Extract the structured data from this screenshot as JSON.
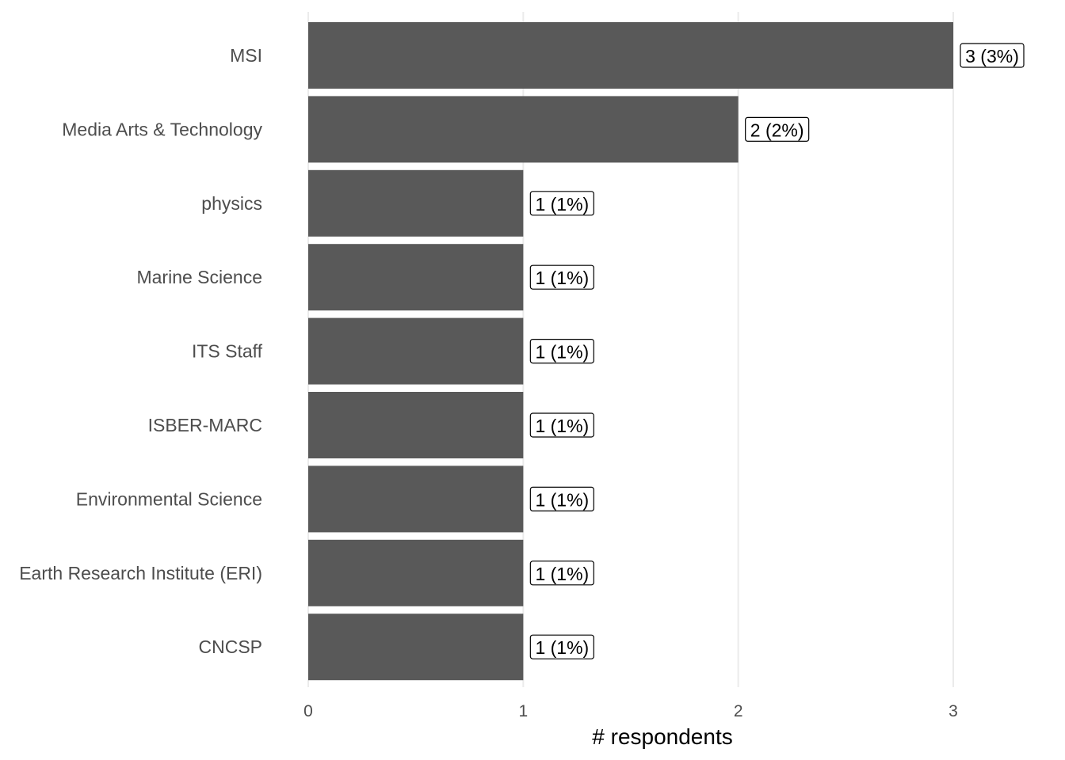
{
  "chart_data": {
    "type": "bar",
    "orientation": "horizontal",
    "xlabel": "# respondents",
    "ylabel": "",
    "xlim": [
      0,
      3
    ],
    "x_ticks": [
      "0",
      "1",
      "2",
      "3"
    ],
    "grid": "vertical",
    "categories": [
      "MSI",
      "Media Arts & Technology",
      "physics",
      "Marine Science",
      "ITS Staff",
      "ISBER-MARC",
      "Environmental Science",
      "Earth Research Institute (ERI)",
      "CNCSP"
    ],
    "values": [
      3,
      2,
      1,
      1,
      1,
      1,
      1,
      1,
      1
    ],
    "data_labels": [
      "3 (3%)",
      "2 (2%)",
      "1 (1%)",
      "1 (1%)",
      "1 (1%)",
      "1 (1%)",
      "1 (1%)",
      "1 (1%)",
      "1 (1%)"
    ],
    "bar_color": "#595959",
    "grid_color": "#ebebeb"
  }
}
